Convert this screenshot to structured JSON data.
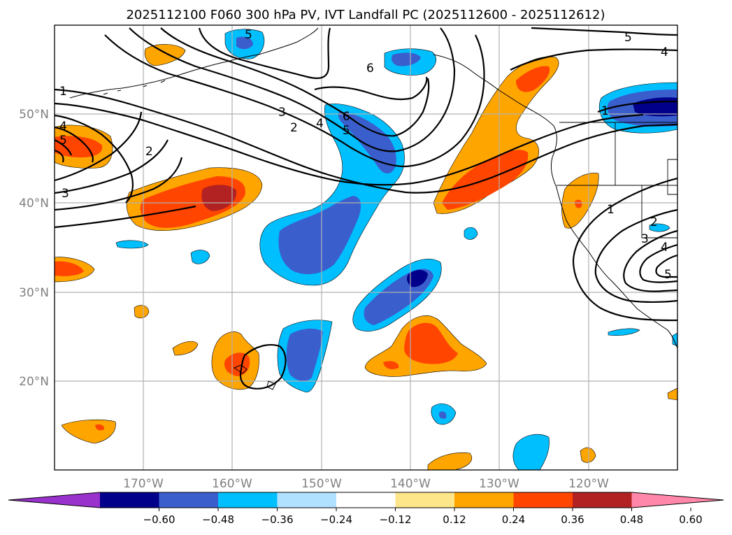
{
  "title": "2025112100 F060 300 hPa PV, IVT Landfall PC (2025112600 - 2025112612)",
  "lat_labels": [
    "50°N",
    "40°N",
    "30°N",
    "20°N"
  ],
  "lon_labels": [
    "170°W",
    "160°W",
    "150°W",
    "140°W",
    "130°W",
    "120°W"
  ],
  "colorbar": {
    "tick_labels": [
      "−0.60",
      "−0.48",
      "−0.36",
      "−0.24",
      "−0.12",
      "0.12",
      "0.24",
      "0.36",
      "0.48",
      "0.60"
    ],
    "colors": [
      "#9932cc",
      "#00008b",
      "#3a5fcd",
      "#00bfff",
      "#b0e2ff",
      "#ffffff",
      "#fde68a",
      "#ffa500",
      "#ff4500",
      "#b22222",
      "#ff88aa"
    ]
  },
  "contour_labels": {
    "c1a": "1",
    "c1b": "1",
    "c1c": "1",
    "c2a": "2",
    "c2b": "2",
    "c2c": "2",
    "c3a": "3",
    "c3b": "3",
    "c3c": "3",
    "c4a": "4",
    "c4b": "4",
    "c4c": "4",
    "c4d": "4",
    "c5a": "5",
    "c5b": "5",
    "c5c": "5",
    "c5d": "5",
    "c6a": "6",
    "c6b": "6"
  },
  "colors": {
    "orange": "#ffa500",
    "red_orange": "#ff4500",
    "dark_red": "#b22222",
    "light_blue": "#00bfff",
    "mid_blue": "#3a5fcd",
    "navy": "#00008b"
  }
}
